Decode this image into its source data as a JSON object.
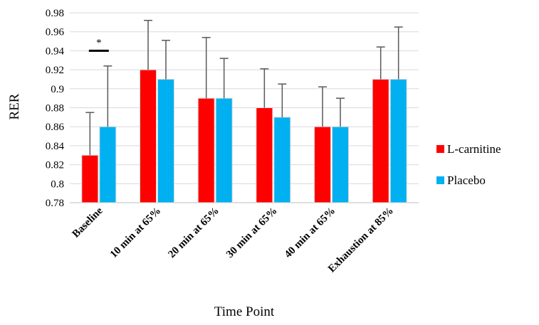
{
  "chart_data": {
    "type": "bar",
    "title": "",
    "xlabel": "Time Point",
    "ylabel": "RER",
    "ylim": [
      0.78,
      0.98
    ],
    "yticks": [
      0.78,
      0.8,
      0.82,
      0.84,
      0.86,
      0.88,
      0.9,
      0.92,
      0.94,
      0.96,
      0.98
    ],
    "ytick_labels": [
      "0.78",
      "0.8",
      "0.82",
      "0.84",
      "0.86",
      "0.88",
      "0.9",
      "0.92",
      "0.94",
      "0.96",
      "0.98"
    ],
    "grid": true,
    "legend_position": "right",
    "categories": [
      "Baseline",
      "10 min at 65%",
      "20 min at 65%",
      "30 min at 65%",
      "40 min at 65%",
      "Exhaustion at 85%"
    ],
    "series": [
      {
        "name": "L-carnitine",
        "color": "#ff0000",
        "values": [
          0.83,
          0.92,
          0.89,
          0.88,
          0.86,
          0.91
        ],
        "error": [
          0.045,
          0.052,
          0.064,
          0.041,
          0.042,
          0.034
        ]
      },
      {
        "name": "Placebo",
        "color": "#00b0f0",
        "values": [
          0.86,
          0.91,
          0.89,
          0.87,
          0.86,
          0.91
        ],
        "error": [
          0.064,
          0.041,
          0.042,
          0.035,
          0.03,
          0.055
        ]
      }
    ],
    "annotations": [
      {
        "text": "*",
        "category": "Baseline",
        "y": 0.94
      }
    ]
  }
}
